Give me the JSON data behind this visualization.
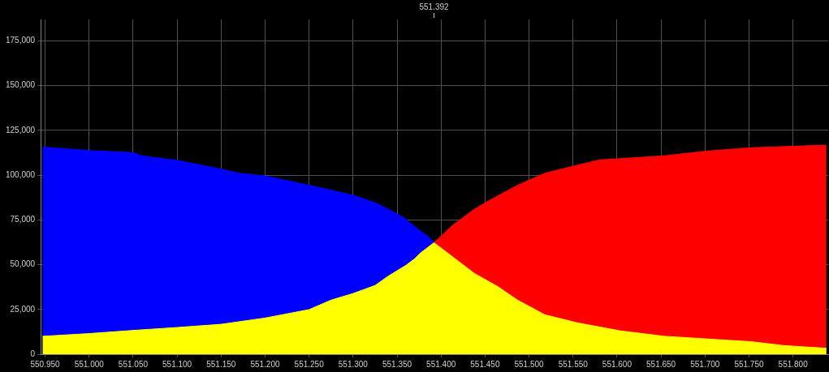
{
  "chart_data": {
    "type": "area",
    "xlim": [
      550.945,
      551.84
    ],
    "xticks": [
      {
        "value": 550.95,
        "label": "550.950"
      },
      {
        "value": 551.0,
        "label": "551.000"
      },
      {
        "value": 551.05,
        "label": "551.050"
      },
      {
        "value": 551.1,
        "label": "551.100"
      },
      {
        "value": 551.15,
        "label": "551.150"
      },
      {
        "value": 551.2,
        "label": "551.200"
      },
      {
        "value": 551.25,
        "label": "551.250"
      },
      {
        "value": 551.3,
        "label": "551.300"
      },
      {
        "value": 551.35,
        "label": "551.350"
      },
      {
        "value": 551.4,
        "label": "551.400"
      },
      {
        "value": 551.45,
        "label": "551.450"
      },
      {
        "value": 551.5,
        "label": "551.500"
      },
      {
        "value": 551.55,
        "label": "551.550"
      },
      {
        "value": 551.6,
        "label": "551.600"
      },
      {
        "value": 551.65,
        "label": "551.650"
      },
      {
        "value": 551.7,
        "label": "551.700"
      },
      {
        "value": 551.75,
        "label": "551.750"
      },
      {
        "value": 551.8,
        "label": "551.800"
      }
    ],
    "ylim": [
      0,
      187000
    ],
    "yticks": [
      {
        "value": 0,
        "label": "0"
      },
      {
        "value": 25000,
        "label": "25,000"
      },
      {
        "value": 50000,
        "label": "50,000"
      },
      {
        "value": 75000,
        "label": "75,000"
      },
      {
        "value": 100000,
        "label": "100,000"
      },
      {
        "value": 125000,
        "label": "125,000"
      },
      {
        "value": 150000,
        "label": "150,000"
      },
      {
        "value": 175000,
        "label": "175,000"
      }
    ],
    "grid": true,
    "ref_lines": [
      {
        "axis": "x",
        "value": 551.392,
        "label": "551.392"
      }
    ],
    "series": [
      {
        "color": "#0000ff",
        "x": [
          550.947,
          551.0,
          551.05,
          551.06,
          551.1,
          551.15,
          551.17,
          551.2,
          551.25,
          551.275,
          551.3,
          551.325,
          551.34,
          551.357,
          551.376,
          551.385,
          551.392
        ],
        "values": [
          115700,
          113800,
          112600,
          110800,
          108300,
          103400,
          101100,
          99600,
          94400,
          91700,
          88800,
          84700,
          81000,
          76500,
          69000,
          66000,
          62300
        ]
      },
      {
        "color": "#ff0000",
        "x": [
          551.392,
          551.413,
          551.438,
          551.456,
          551.487,
          551.518,
          551.555,
          551.58,
          551.654,
          551.703,
          551.752,
          551.838
        ],
        "values": [
          62300,
          72000,
          81000,
          86200,
          94400,
          101100,
          105600,
          108500,
          110800,
          113500,
          115300,
          116800
        ]
      },
      {
        "color": "#ffff00",
        "x": [
          550.947,
          551.0,
          551.05,
          551.1,
          551.15,
          551.2,
          551.25,
          551.275,
          551.3,
          551.325,
          551.34,
          551.35,
          551.36,
          551.37,
          551.376,
          551.392,
          551.438,
          551.465,
          551.487,
          551.518,
          551.555,
          551.604,
          551.654,
          551.703,
          551.752,
          551.79,
          551.838
        ],
        "values": [
          10000,
          11500,
          13300,
          14900,
          16700,
          20200,
          24900,
          30200,
          33900,
          38400,
          43600,
          46600,
          49600,
          53300,
          56300,
          62300,
          45100,
          37600,
          30200,
          22000,
          17500,
          13000,
          10000,
          8500,
          7000,
          4800,
          3300
        ]
      }
    ]
  }
}
